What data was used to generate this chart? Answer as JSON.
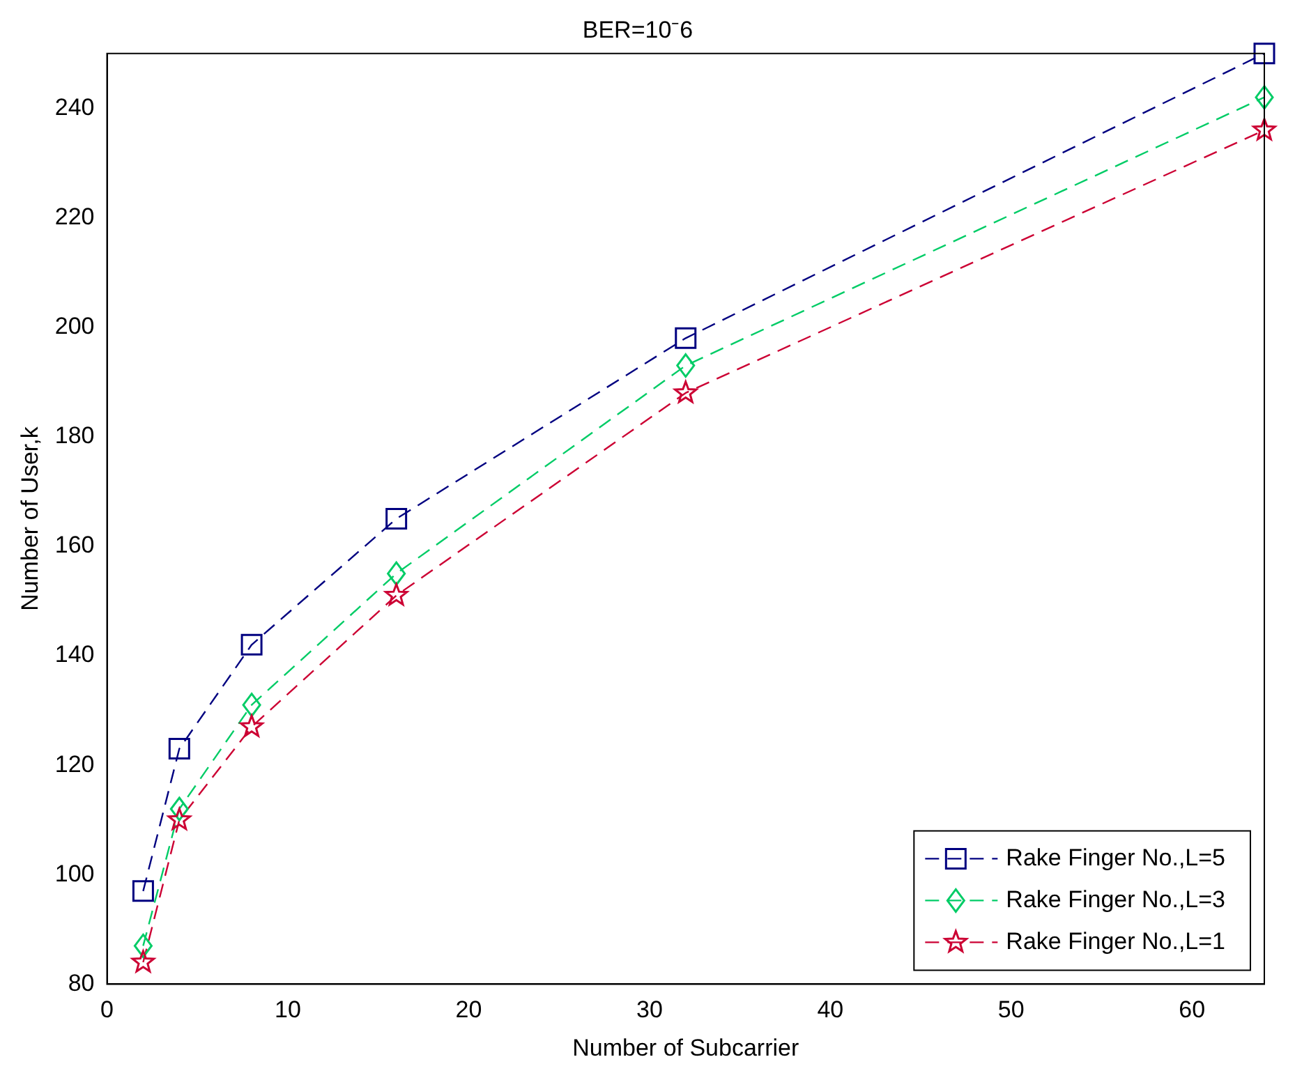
{
  "chart_data": {
    "type": "line",
    "title": "BER=10⁻6",
    "xlabel": "Number of Subcarrier",
    "ylabel": "Number of User,k",
    "x": [
      2,
      4,
      8,
      16,
      32,
      64
    ],
    "series": [
      {
        "name": "Rake Finger No.,L=5",
        "color": "#000080",
        "values": [
          97,
          123,
          142,
          165,
          198,
          250
        ],
        "marker": "square"
      },
      {
        "name": "Rake Finger No.,L=3",
        "color": "#00cc66",
        "values": [
          87,
          112,
          131,
          155,
          193,
          242
        ],
        "marker": "diamond"
      },
      {
        "name": "Rake Finger No.,L=1",
        "color": "#cc0033",
        "values": [
          84,
          110,
          127,
          151,
          188,
          236
        ],
        "marker": "star"
      }
    ],
    "xlim": [
      0,
      64
    ],
    "xticks": [
      0,
      10,
      20,
      30,
      40,
      50,
      60
    ],
    "ylim": [
      80,
      250
    ],
    "yticks": [
      80,
      100,
      120,
      140,
      160,
      180,
      200,
      220,
      240
    ],
    "grid": false,
    "legend": "bottom right",
    "line_style": "dashed"
  }
}
